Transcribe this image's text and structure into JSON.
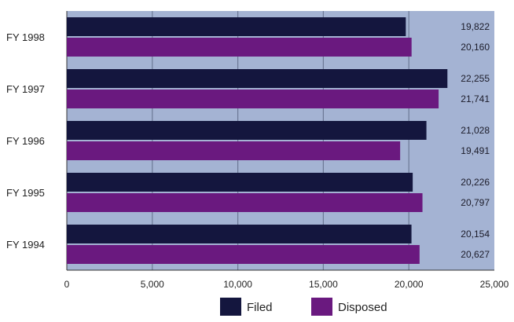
{
  "chart_data": {
    "type": "bar",
    "orientation": "horizontal",
    "categories": [
      "FY 1998",
      "FY 1997",
      "FY 1996",
      "FY 1995",
      "FY 1994"
    ],
    "series": [
      {
        "name": "Filed",
        "values": [
          19822,
          22255,
          21028,
          20226,
          20154
        ],
        "labels": [
          "19,822",
          "22,255",
          "21,028",
          "20,226",
          "20,154"
        ]
      },
      {
        "name": "Disposed",
        "values": [
          20160,
          21741,
          19491,
          20797,
          20627
        ],
        "labels": [
          "20,160",
          "21,741",
          "19,491",
          "20,797",
          "20,627"
        ]
      }
    ],
    "xlim": [
      0,
      25000
    ],
    "xticks": [
      "0",
      "5,000",
      "10,000",
      "15,000",
      "20,000",
      "25,000"
    ],
    "grid": true,
    "legend_position": "bottom",
    "colors": {
      "plot_background": "#a4b3d3",
      "grid": "#6c7896",
      "Filed": "#14163e",
      "Disposed": "#6a197f"
    }
  }
}
